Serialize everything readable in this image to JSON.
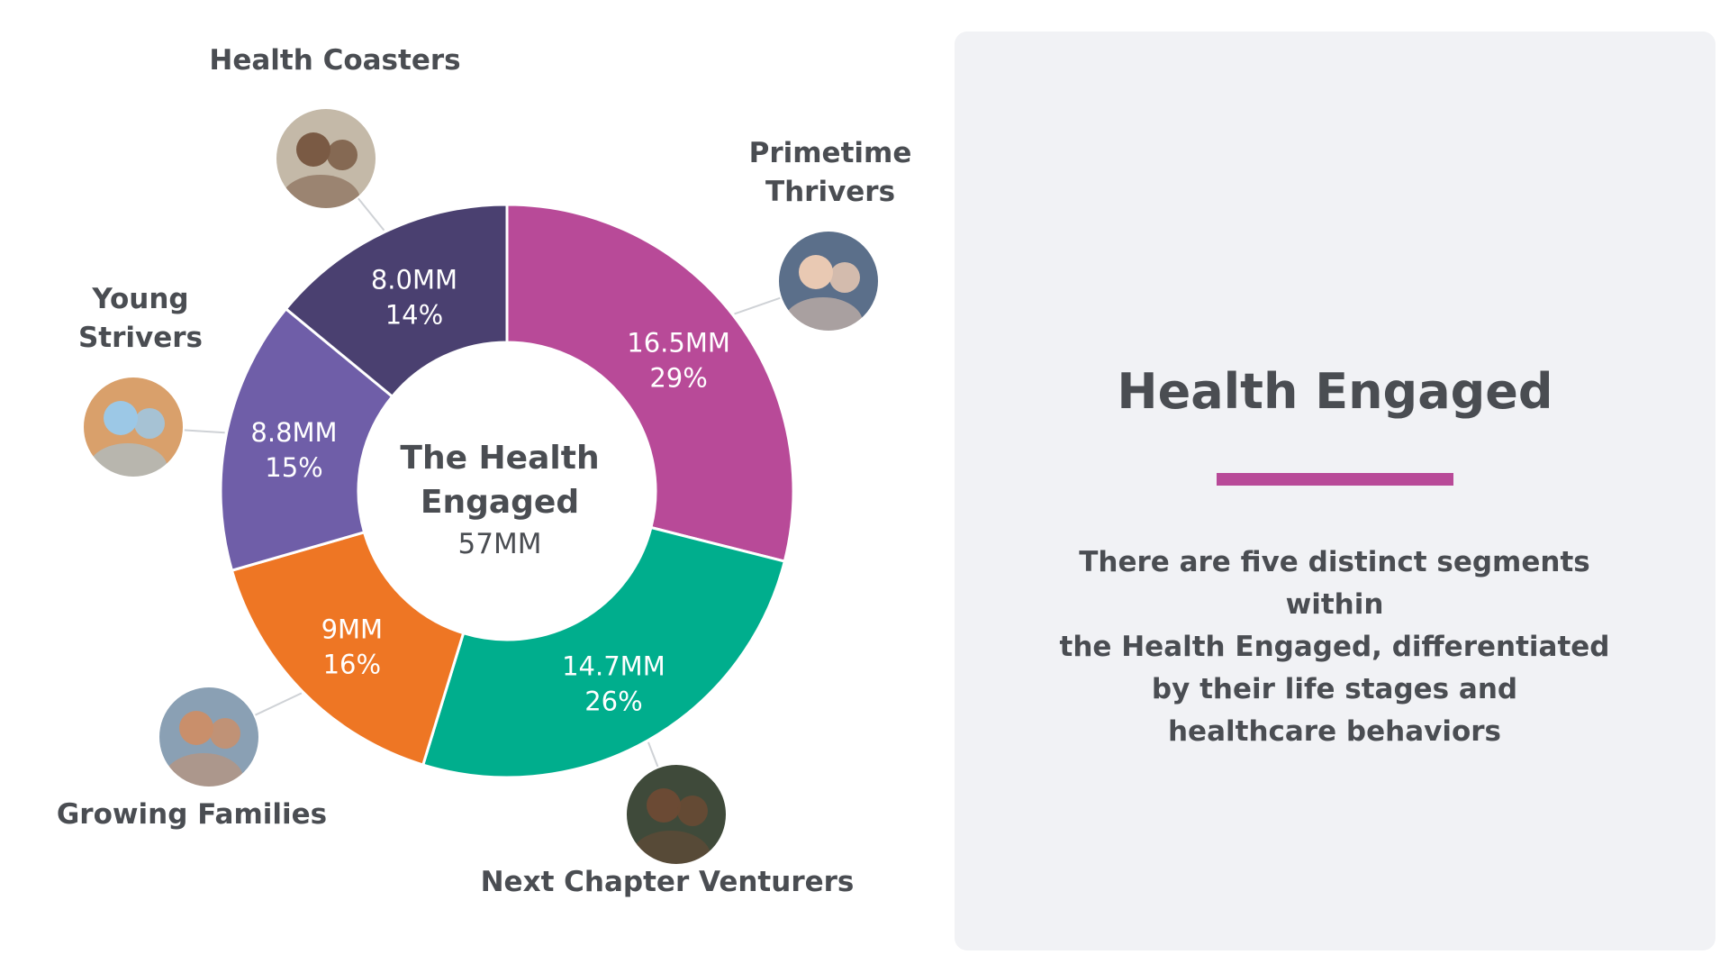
{
  "chart_data": {
    "type": "donut",
    "center": {
      "title_lines": [
        "The Health",
        "Engaged"
      ],
      "total": "57MM"
    },
    "segments": [
      {
        "name_lines": [
          "Primetime",
          "Thrivers"
        ],
        "value_mm": 16.5,
        "value_label": "16.5MM",
        "percent": 29,
        "percent_label": "29%",
        "color": "#b84a98"
      },
      {
        "name_lines": [
          "Next Chapter Venturers"
        ],
        "value_mm": 14.7,
        "value_label": "14.7MM",
        "percent": 26,
        "percent_label": "26%",
        "color": "#00ae8d"
      },
      {
        "name_lines": [
          "Growing Families"
        ],
        "value_mm": 9.0,
        "value_label": "9MM",
        "percent": 16,
        "percent_label": "16%",
        "color": "#ee7624"
      },
      {
        "name_lines": [
          "Young",
          "Strivers"
        ],
        "value_mm": 8.8,
        "value_label": "8.8MM",
        "percent": 15,
        "percent_label": "15%",
        "color": "#6f5ea8"
      },
      {
        "name_lines": [
          "Health Coasters"
        ],
        "value_mm": 8.0,
        "value_label": "8.0MM",
        "percent": 14,
        "percent_label": "14%",
        "color": "#4a4070"
      }
    ]
  },
  "panel": {
    "title": "Health Engaged",
    "accent_color": "#b84a98",
    "body_lines": [
      "There are five distinct segments within",
      "the Health Engaged, differentiated",
      "by their life stages and",
      "healthcare behaviors"
    ]
  },
  "colors": {
    "text": "#4a4d52",
    "panel_background": "#f1f2f5"
  }
}
